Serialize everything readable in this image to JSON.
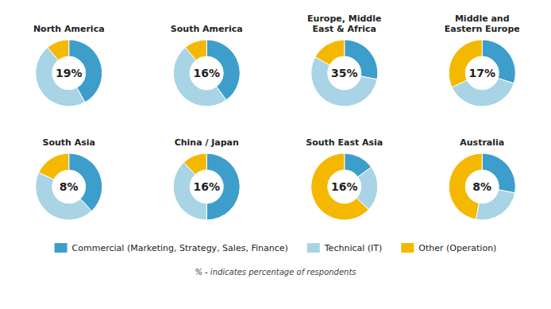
{
  "chart_data": {
    "type": "donut",
    "categories": [
      "Commercial (Marketing, Strategy, Sales, Finance)",
      "Technical (IT)",
      "Other (Operation)"
    ],
    "colors": [
      "#3d9ecc",
      "#a8d4e6",
      "#f5b800"
    ],
    "series": [
      {
        "name": "North America",
        "values": [
          0.42,
          0.47,
          0.11
        ],
        "center_value": 19,
        "center_label": "19%"
      },
      {
        "name": "South America",
        "values": [
          0.4,
          0.49,
          0.11
        ],
        "center_value": 16,
        "center_label": "16%"
      },
      {
        "name": "Europe, Middle\nEast & Africa",
        "values": [
          0.28,
          0.55,
          0.17
        ],
        "center_value": 35,
        "center_label": "35%"
      },
      {
        "name": "Middle and\nEastern Europe",
        "values": [
          0.3,
          0.38,
          0.32
        ],
        "center_value": 17,
        "center_label": "17%"
      },
      {
        "name": "South Asia",
        "values": [
          0.38,
          0.44,
          0.18
        ],
        "center_value": 8,
        "center_label": "8%"
      },
      {
        "name": "China / Japan",
        "values": [
          0.5,
          0.38,
          0.12
        ],
        "center_value": 16,
        "center_label": "16%"
      },
      {
        "name": "South East Asia",
        "values": [
          0.15,
          0.22,
          0.63
        ],
        "center_value": 16,
        "center_label": "16%"
      },
      {
        "name": "Australia",
        "values": [
          0.28,
          0.25,
          0.47
        ],
        "center_value": 8,
        "center_label": "8%"
      }
    ],
    "annotations": [
      "% - indicates percentage of respondents"
    ]
  }
}
